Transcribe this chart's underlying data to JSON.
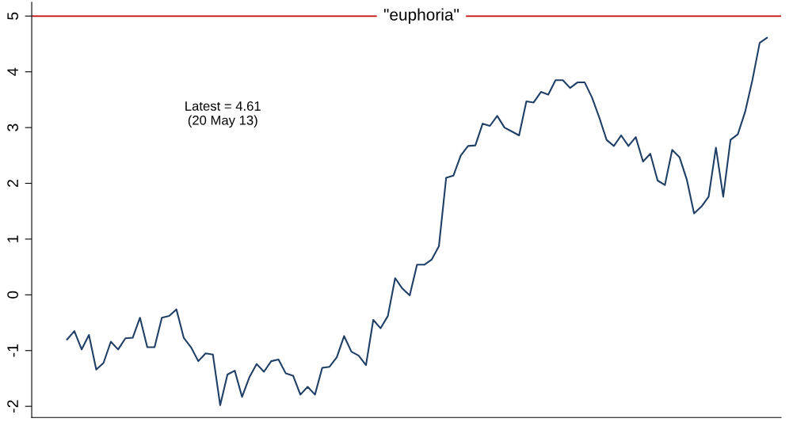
{
  "chart_data": {
    "type": "line",
    "categories": [
      null,
      null,
      null,
      null,
      null,
      null,
      null,
      null,
      null,
      null,
      null,
      null,
      null,
      null,
      null,
      null,
      null,
      null,
      null,
      null,
      null,
      null,
      null,
      null,
      null,
      null,
      null,
      null,
      null,
      null,
      null,
      null,
      null,
      null,
      null,
      null,
      null,
      null,
      null,
      null,
      null,
      null,
      null,
      null,
      null,
      null,
      null,
      null,
      null,
      null,
      null,
      null,
      null,
      null,
      null,
      null,
      null,
      null,
      null,
      null,
      null,
      null,
      null,
      null,
      null,
      null,
      null,
      null,
      null,
      null,
      null,
      null,
      null,
      null,
      null,
      null,
      null,
      null,
      null,
      null,
      null,
      null,
      null,
      null,
      null,
      null,
      null,
      null,
      null,
      null,
      null,
      null,
      null,
      null,
      null,
      null,
      null
    ],
    "series": [
      {
        "color": "#1f3f66",
        "values": [
          -0.8,
          -0.65,
          -0.98,
          -0.72,
          -1.34,
          -1.22,
          -0.84,
          -0.98,
          -0.78,
          -0.77,
          -0.41,
          -0.94,
          -0.94,
          -0.41,
          -0.38,
          -0.26,
          -0.77,
          -0.94,
          -1.19,
          -1.05,
          -1.07,
          -1.98,
          -1.43,
          -1.36,
          -1.83,
          -1.48,
          -1.24,
          -1.38,
          -1.19,
          -1.16,
          -1.41,
          -1.45,
          -1.79,
          -1.65,
          -1.79,
          -1.31,
          -1.29,
          -1.12,
          -0.74,
          -1.02,
          -1.09,
          -1.26,
          -0.45,
          -0.6,
          -0.38,
          0.3,
          0.11,
          -0.01,
          0.54,
          0.54,
          0.63,
          0.87,
          2.1,
          2.14,
          2.5,
          2.67,
          2.68,
          3.07,
          3.03,
          3.21,
          3.0,
          2.93,
          2.86,
          3.47,
          3.45,
          3.64,
          3.59,
          3.85,
          3.85,
          3.71,
          3.81,
          3.81,
          3.54,
          3.18,
          2.78,
          2.67,
          2.86,
          2.67,
          2.83,
          2.39,
          2.53,
          2.05,
          1.97,
          2.6,
          2.47,
          2.07,
          1.46,
          1.58,
          1.76,
          2.64,
          1.76,
          2.78,
          2.88,
          3.28,
          3.85,
          4.52,
          4.61
        ]
      }
    ],
    "ylim": [
      -2.2,
      5.25
    ],
    "yticks": [
      -2,
      -1,
      0,
      1,
      2,
      3,
      4,
      5
    ],
    "ref_lines": [
      {
        "axis": "y",
        "value": 5,
        "label": "\"euphoria\"",
        "color": "#c00000"
      }
    ],
    "annotations": [
      "Latest = 4.61\n(20 May 13)"
    ],
    "grid": false,
    "legend": false,
    "marker": "none",
    "line_style": "solid"
  }
}
